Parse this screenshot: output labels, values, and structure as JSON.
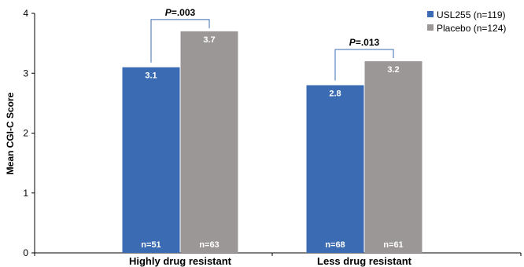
{
  "chart_data": {
    "type": "bar",
    "ylabel": "Mean CGI-C Score",
    "xlabel": "",
    "ylim": [
      0,
      4
    ],
    "yticks": [
      "0",
      "1",
      "2",
      "3",
      "4"
    ],
    "categories": [
      "Highly drug resistant",
      "Less drug resistant"
    ],
    "series": [
      {
        "name": "USL255 (n=119)",
        "color": "#3B6BB3",
        "values": [
          3.1,
          2.8
        ],
        "value_labels": [
          "3.1",
          "2.8"
        ],
        "n_labels": [
          "n=51",
          "n=68"
        ]
      },
      {
        "name": "Placebo (n=124)",
        "color": "#9B9797",
        "values": [
          3.7,
          3.2
        ],
        "value_labels": [
          "3.7",
          "3.2"
        ],
        "n_labels": [
          "n=63",
          "n=61"
        ]
      }
    ],
    "annotations": [
      {
        "category_index": 0,
        "p_prefix": "P",
        "p_suffix": "=.003"
      },
      {
        "category_index": 1,
        "p_prefix": "P",
        "p_suffix": "=.013"
      }
    ],
    "bracket_color": "#3B6BB3",
    "legend_position": "top-right",
    "grid": false
  }
}
